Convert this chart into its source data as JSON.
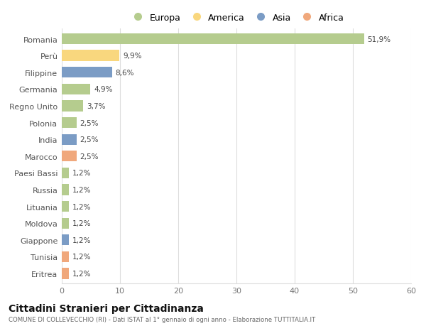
{
  "countries": [
    "Romania",
    "Perù",
    "Filippine",
    "Germania",
    "Regno Unito",
    "Polonia",
    "India",
    "Marocco",
    "Paesi Bassi",
    "Russia",
    "Lituania",
    "Moldova",
    "Giappone",
    "Tunisia",
    "Eritrea"
  ],
  "values": [
    51.9,
    9.9,
    8.6,
    4.9,
    3.7,
    2.5,
    2.5,
    2.5,
    1.2,
    1.2,
    1.2,
    1.2,
    1.2,
    1.2,
    1.2
  ],
  "labels": [
    "51,9%",
    "9,9%",
    "8,6%",
    "4,9%",
    "3,7%",
    "2,5%",
    "2,5%",
    "2,5%",
    "1,2%",
    "1,2%",
    "1,2%",
    "1,2%",
    "1,2%",
    "1,2%",
    "1,2%"
  ],
  "continents": [
    "Europa",
    "America",
    "Asia",
    "Europa",
    "Europa",
    "Europa",
    "Asia",
    "Africa",
    "Europa",
    "Europa",
    "Europa",
    "Europa",
    "Asia",
    "Africa",
    "Africa"
  ],
  "colors": {
    "Europa": "#b5cc8e",
    "America": "#f9d77e",
    "Asia": "#7b9cc5",
    "Africa": "#f0a87c"
  },
  "xlim": [
    0,
    60
  ],
  "xticks": [
    0,
    10,
    20,
    30,
    40,
    50,
    60
  ],
  "title": "Cittadini Stranieri per Cittadinanza",
  "subtitle": "COMUNE DI COLLEVECCHIO (RI) - Dati ISTAT al 1° gennaio di ogni anno - Elaborazione TUTTITALIA.IT",
  "bg_color": "#ffffff",
  "grid_color": "#dddddd",
  "bar_height": 0.65,
  "legend_order": [
    "Europa",
    "America",
    "Asia",
    "Africa"
  ]
}
